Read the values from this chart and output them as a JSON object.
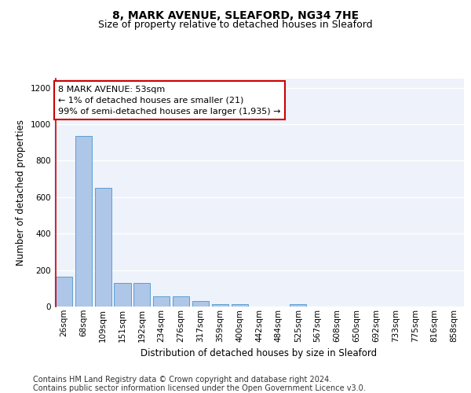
{
  "title": "8, MARK AVENUE, SLEAFORD, NG34 7HE",
  "subtitle": "Size of property relative to detached houses in Sleaford",
  "xlabel": "Distribution of detached houses by size in Sleaford",
  "ylabel": "Number of detached properties",
  "bar_categories": [
    "26sqm",
    "68sqm",
    "109sqm",
    "151sqm",
    "192sqm",
    "234sqm",
    "276sqm",
    "317sqm",
    "359sqm",
    "400sqm",
    "442sqm",
    "484sqm",
    "525sqm",
    "567sqm",
    "608sqm",
    "650sqm",
    "692sqm",
    "733sqm",
    "775sqm",
    "816sqm",
    "858sqm"
  ],
  "bar_values": [
    165,
    935,
    650,
    130,
    130,
    57,
    57,
    30,
    13,
    13,
    0,
    0,
    15,
    0,
    0,
    0,
    0,
    0,
    0,
    0,
    0
  ],
  "bar_color": "#aec6e8",
  "bar_edge_color": "#5a9fd4",
  "highlight_line_color": "#cc0000",
  "annotation_text": "8 MARK AVENUE: 53sqm\n← 1% of detached houses are smaller (21)\n99% of semi-detached houses are larger (1,935) →",
  "annotation_box_color": "#ffffff",
  "annotation_box_edge_color": "#cc0000",
  "ylim": [
    0,
    1250
  ],
  "yticks": [
    0,
    200,
    400,
    600,
    800,
    1000,
    1200
  ],
  "background_color": "#eef2fa",
  "grid_color": "#ffffff",
  "footer_line1": "Contains HM Land Registry data © Crown copyright and database right 2024.",
  "footer_line2": "Contains public sector information licensed under the Open Government Licence v3.0.",
  "title_fontsize": 10,
  "subtitle_fontsize": 9,
  "axis_label_fontsize": 8.5,
  "tick_fontsize": 7.5,
  "annotation_fontsize": 8,
  "footer_fontsize": 7
}
